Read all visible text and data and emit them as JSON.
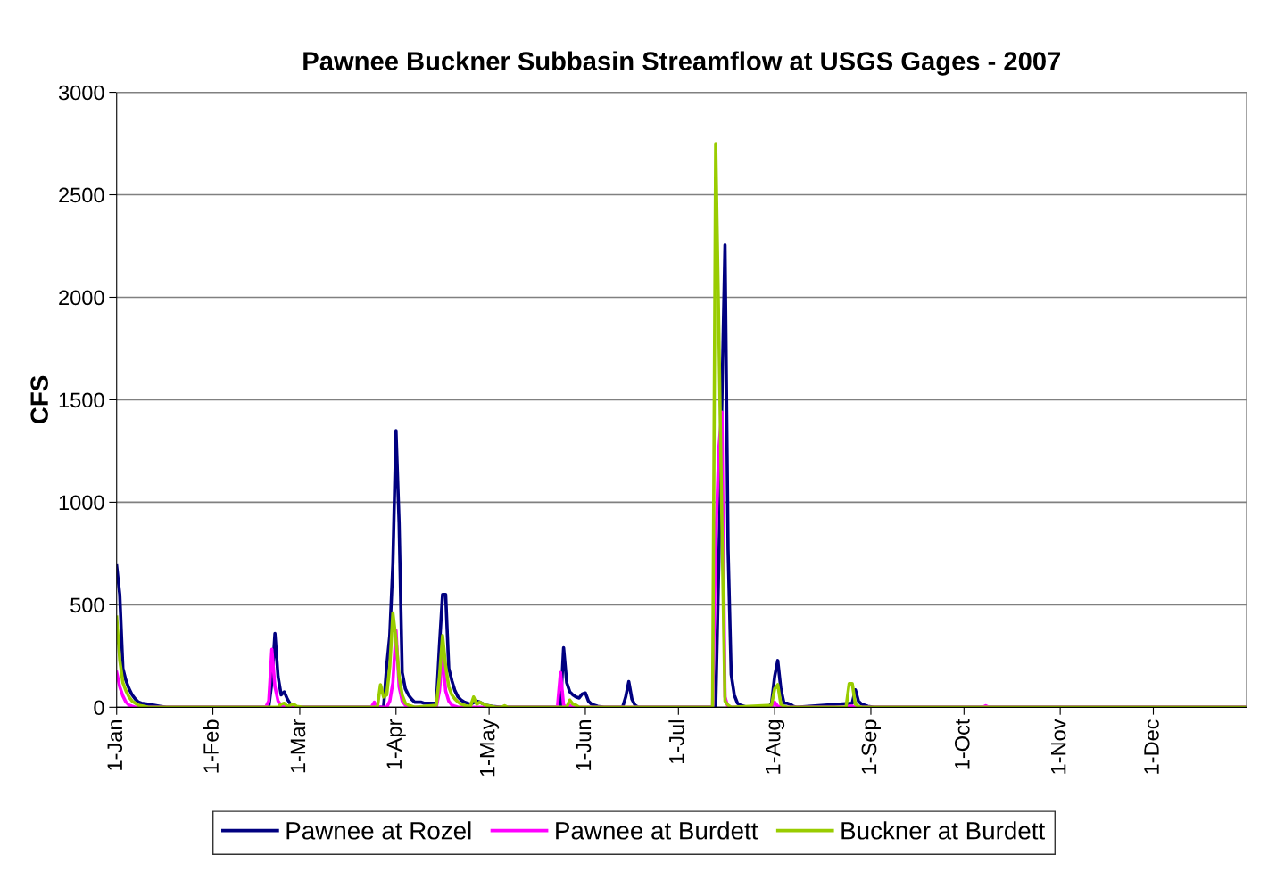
{
  "chart_data": {
    "type": "line",
    "title": "Pawnee Buckner Subbasin Streamflow at USGS Gages - 2007",
    "ylabel": "CFS",
    "xlim": [
      "2007-01-01",
      "2007-12-31"
    ],
    "xticks": [
      {
        "value": "2007-01-01",
        "label": "1-Jan"
      },
      {
        "value": "2007-02-01",
        "label": "1-Feb"
      },
      {
        "value": "2007-03-01",
        "label": "1-Mar"
      },
      {
        "value": "2007-04-01",
        "label": "1-Apr"
      },
      {
        "value": "2007-05-01",
        "label": "1-May"
      },
      {
        "value": "2007-06-01",
        "label": "1-Jun"
      },
      {
        "value": "2007-07-01",
        "label": "1-Jul"
      },
      {
        "value": "2007-08-01",
        "label": "1-Aug"
      },
      {
        "value": "2007-09-01",
        "label": "1-Sep"
      },
      {
        "value": "2007-10-01",
        "label": "1-Oct"
      },
      {
        "value": "2007-11-01",
        "label": "1-Nov"
      },
      {
        "value": "2007-12-01",
        "label": "1-Dec"
      }
    ],
    "ylim": [
      0,
      3000
    ],
    "yticks": [
      0,
      500,
      1000,
      1500,
      2000,
      2500,
      3000
    ],
    "grid": "y",
    "legend": "bottom",
    "marker": "none",
    "line_style": "solid",
    "series": [
      {
        "name": "Pawnee at Rozel",
        "color": "#000080",
        "x": [
          "2007-01-01",
          "2007-01-02",
          "2007-01-03",
          "2007-01-04",
          "2007-01-05",
          "2007-01-06",
          "2007-01-07",
          "2007-01-08",
          "2007-01-09",
          "2007-01-11",
          "2007-01-13",
          "2007-01-15",
          "2007-01-17",
          "2007-02-19",
          "2007-02-20",
          "2007-02-21",
          "2007-02-22",
          "2007-02-23",
          "2007-02-24",
          "2007-02-25",
          "2007-02-26",
          "2007-02-27",
          "2007-03-01",
          "2007-03-28",
          "2007-03-29",
          "2007-03-30",
          "2007-03-31",
          "2007-04-01",
          "2007-04-02",
          "2007-04-03",
          "2007-04-04",
          "2007-04-05",
          "2007-04-06",
          "2007-04-07",
          "2007-04-09",
          "2007-04-10",
          "2007-04-13",
          "2007-04-14",
          "2007-04-15",
          "2007-04-16",
          "2007-04-17",
          "2007-04-18",
          "2007-04-19",
          "2007-04-20",
          "2007-04-21",
          "2007-04-22",
          "2007-04-23",
          "2007-04-25",
          "2007-04-27",
          "2007-04-28",
          "2007-04-30",
          "2007-05-02",
          "2007-05-05",
          "2007-05-24",
          "2007-05-25",
          "2007-05-26",
          "2007-05-27",
          "2007-05-28",
          "2007-05-29",
          "2007-05-30",
          "2007-05-31",
          "2007-06-01",
          "2007-06-02",
          "2007-06-03",
          "2007-06-05",
          "2007-06-07",
          "2007-06-13",
          "2007-06-14",
          "2007-06-15",
          "2007-06-16",
          "2007-06-17",
          "2007-06-18",
          "2007-07-13",
          "2007-07-14",
          "2007-07-15",
          "2007-07-16",
          "2007-07-17",
          "2007-07-18",
          "2007-07-19",
          "2007-07-20",
          "2007-07-21",
          "2007-07-23",
          "2007-07-30",
          "2007-07-31",
          "2007-08-01",
          "2007-08-02",
          "2007-08-03",
          "2007-08-04",
          "2007-08-05",
          "2007-08-06",
          "2007-08-07",
          "2007-08-08",
          "2007-08-26",
          "2007-08-27",
          "2007-08-28",
          "2007-08-29",
          "2007-08-30",
          "2007-08-31",
          "2007-09-02",
          "2007-12-31"
        ],
        "values": [
          690,
          550,
          190,
          130,
          90,
          60,
          40,
          25,
          20,
          15,
          10,
          5,
          0,
          0,
          120,
          360,
          150,
          60,
          75,
          40,
          15,
          5,
          0,
          0,
          200,
          350,
          700,
          1350,
          900,
          170,
          90,
          60,
          40,
          25,
          25,
          20,
          20,
          20,
          300,
          550,
          550,
          190,
          130,
          80,
          50,
          35,
          25,
          15,
          30,
          25,
          10,
          5,
          0,
          0,
          290,
          120,
          75,
          60,
          50,
          45,
          65,
          70,
          30,
          15,
          5,
          0,
          0,
          50,
          125,
          40,
          10,
          0,
          0,
          700,
          1500,
          2255,
          770,
          160,
          60,
          20,
          10,
          0,
          0,
          20,
          150,
          228,
          90,
          20,
          20,
          15,
          5,
          0,
          20,
          85,
          30,
          15,
          10,
          5,
          0,
          0
        ]
      },
      {
        "name": "Pawnee at Burdett",
        "color": "#ff00ff",
        "x": [
          "2007-01-01",
          "2007-01-02",
          "2007-01-03",
          "2007-01-04",
          "2007-01-05",
          "2007-01-06",
          "2007-01-07",
          "2007-02-18",
          "2007-02-19",
          "2007-02-20",
          "2007-02-21",
          "2007-02-22",
          "2007-02-23",
          "2007-02-25",
          "2007-03-24",
          "2007-03-25",
          "2007-03-26",
          "2007-03-29",
          "2007-03-30",
          "2007-03-31",
          "2007-04-01",
          "2007-04-02",
          "2007-04-03",
          "2007-04-04",
          "2007-04-06",
          "2007-04-14",
          "2007-04-15",
          "2007-04-16",
          "2007-04-17",
          "2007-04-18",
          "2007-04-19",
          "2007-04-21",
          "2007-05-23",
          "2007-05-24",
          "2007-05-25",
          "2007-05-26",
          "2007-05-27",
          "2007-05-28",
          "2007-07-12",
          "2007-07-13",
          "2007-07-14",
          "2007-07-15",
          "2007-07-16",
          "2007-07-17",
          "2007-07-31",
          "2007-08-01",
          "2007-08-02",
          "2007-08-03",
          "2007-08-24",
          "2007-08-25",
          "2007-08-26",
          "2007-08-27",
          "2007-10-07",
          "2007-10-08",
          "2007-10-09",
          "2007-12-31"
        ],
        "values": [
          170,
          100,
          55,
          25,
          10,
          5,
          0,
          0,
          30,
          283,
          100,
          30,
          10,
          0,
          0,
          25,
          0,
          0,
          30,
          120,
          375,
          100,
          30,
          10,
          0,
          0,
          80,
          250,
          80,
          30,
          10,
          0,
          0,
          170,
          10,
          0,
          10,
          0,
          0,
          800,
          1260,
          1440,
          50,
          0,
          0,
          25,
          5,
          0,
          0,
          5,
          5,
          0,
          0,
          8,
          0,
          0
        ]
      },
      {
        "name": "Buckner at Burdett",
        "color": "#99cc00",
        "x": [
          "2007-01-01",
          "2007-01-02",
          "2007-01-03",
          "2007-01-04",
          "2007-01-05",
          "2007-01-06",
          "2007-01-07",
          "2007-01-08",
          "2007-01-10",
          "2007-01-11",
          "2007-02-22",
          "2007-02-23",
          "2007-02-24",
          "2007-02-25",
          "2007-02-27",
          "2007-02-28",
          "2007-03-02",
          "2007-03-26",
          "2007-03-27",
          "2007-03-28",
          "2007-03-29",
          "2007-03-30",
          "2007-03-31",
          "2007-04-01",
          "2007-04-02",
          "2007-04-03",
          "2007-04-04",
          "2007-04-05",
          "2007-04-07",
          "2007-04-14",
          "2007-04-15",
          "2007-04-16",
          "2007-04-17",
          "2007-04-18",
          "2007-04-19",
          "2007-04-20",
          "2007-04-21",
          "2007-04-22",
          "2007-04-24",
          "2007-04-25",
          "2007-04-26",
          "2007-04-27",
          "2007-04-28",
          "2007-04-30",
          "2007-05-03",
          "2007-05-05",
          "2007-05-06",
          "2007-05-07",
          "2007-05-26",
          "2007-05-27",
          "2007-05-28",
          "2007-05-29",
          "2007-05-30",
          "2007-07-12",
          "2007-07-13",
          "2007-07-14",
          "2007-07-15",
          "2007-07-16",
          "2007-07-17",
          "2007-07-18",
          "2007-07-31",
          "2007-08-01",
          "2007-08-02",
          "2007-08-03",
          "2007-08-04",
          "2007-08-05",
          "2007-08-24",
          "2007-08-25",
          "2007-08-26",
          "2007-08-27",
          "2007-08-28",
          "2007-08-29",
          "2007-12-31"
        ],
        "values": [
          440,
          230,
          120,
          80,
          50,
          30,
          20,
          10,
          5,
          0,
          0,
          15,
          20,
          5,
          15,
          5,
          0,
          0,
          110,
          50,
          60,
          200,
          460,
          330,
          150,
          60,
          20,
          10,
          0,
          10,
          150,
          350,
          200,
          100,
          60,
          40,
          25,
          15,
          5,
          5,
          50,
          15,
          25,
          10,
          0,
          0,
          8,
          0,
          0,
          35,
          15,
          10,
          0,
          0,
          2750,
          1850,
          900,
          30,
          10,
          0,
          10,
          90,
          110,
          15,
          5,
          0,
          0,
          115,
          115,
          15,
          5,
          0,
          0
        ]
      }
    ]
  }
}
